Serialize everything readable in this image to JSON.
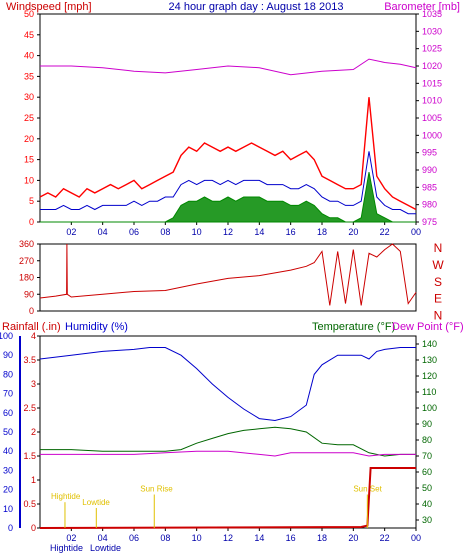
{
  "colors": {
    "background": "#ffffff",
    "frame": "#000000",
    "wind": "#ff0000",
    "wind_avg": "#0000cc",
    "wind_low": "#008800",
    "barometer": "#cc00cc",
    "direction": "#cc0000",
    "rain": "#cc0000",
    "humidity": "#0000cc",
    "temperature": "#006600",
    "dewpoint": "#cc00cc",
    "sun": "#e0c000"
  },
  "chart_data": [
    {
      "type": "line",
      "title": "24 hour graph day : August 18 2013",
      "ylabel_left": "Windspeed [mph]",
      "ylabel_right": "Barometer [mb]",
      "x_ticks": [
        "02",
        "04",
        "06",
        "08",
        "10",
        "12",
        "14",
        "16",
        "18",
        "20",
        "22",
        "00"
      ],
      "y_left_ticks": [
        "0",
        "5",
        "10",
        "15",
        "20",
        "25",
        "30",
        "35",
        "40",
        "45",
        "50"
      ],
      "y_right_ticks": [
        "975",
        "980",
        "985",
        "990",
        "995",
        "1000",
        "1005",
        "1010",
        "1015",
        "1020",
        "1025",
        "1030",
        "1035"
      ],
      "xlim": [
        0,
        24
      ],
      "ylim_left": [
        0,
        50
      ],
      "ylim_right": [
        975,
        1035
      ],
      "grid": false,
      "series": [
        {
          "key": "gust",
          "axis": "left",
          "x": [
            0,
            0.5,
            1,
            1.5,
            2,
            2.5,
            3,
            3.5,
            4,
            4.5,
            5,
            5.5,
            6,
            6.5,
            7,
            7.5,
            8,
            8.5,
            9,
            9.5,
            10,
            10.5,
            11,
            11.5,
            12,
            12.5,
            13,
            13.5,
            14,
            14.5,
            15,
            15.5,
            16,
            16.5,
            17,
            17.5,
            18,
            18.5,
            19,
            19.5,
            20,
            20.5,
            21,
            21.5,
            22,
            22.5,
            23,
            23.5,
            24
          ],
          "values": [
            6,
            7,
            6,
            8,
            7,
            6,
            8,
            7,
            8,
            9,
            8,
            9,
            10,
            8,
            9,
            10,
            11,
            12,
            16,
            18,
            17,
            19,
            18,
            17,
            18,
            17,
            18,
            19,
            18,
            17,
            16,
            17,
            15,
            16,
            17,
            15,
            11,
            10,
            9,
            8,
            8,
            9,
            30,
            11,
            8,
            6,
            5,
            4,
            3
          ]
        },
        {
          "key": "avg",
          "axis": "left",
          "x": [
            0,
            0.5,
            1,
            1.5,
            2,
            2.5,
            3,
            3.5,
            4,
            4.5,
            5,
            5.5,
            6,
            6.5,
            7,
            7.5,
            8,
            8.5,
            9,
            9.5,
            10,
            10.5,
            11,
            11.5,
            12,
            12.5,
            13,
            13.5,
            14,
            14.5,
            15,
            15.5,
            16,
            16.5,
            17,
            17.5,
            18,
            18.5,
            19,
            19.5,
            20,
            20.5,
            21,
            21.5,
            22,
            22.5,
            23,
            23.5,
            24
          ],
          "values": [
            3,
            3,
            3,
            4,
            3,
            3,
            4,
            3,
            4,
            4,
            4,
            4,
            5,
            4,
            5,
            5,
            6,
            6,
            9,
            10,
            9,
            10,
            10,
            9,
            10,
            9,
            10,
            10,
            10,
            9,
            9,
            9,
            8,
            8,
            9,
            8,
            6,
            5,
            5,
            4,
            4,
            5,
            17,
            6,
            4,
            3,
            3,
            2,
            2
          ]
        },
        {
          "key": "low",
          "axis": "left",
          "x": [
            0,
            0.5,
            1,
            1.5,
            2,
            2.5,
            3,
            3.5,
            4,
            4.5,
            5,
            5.5,
            6,
            6.5,
            7,
            7.5,
            8,
            8.5,
            9,
            9.5,
            10,
            10.5,
            11,
            11.5,
            12,
            12.5,
            13,
            13.5,
            14,
            14.5,
            15,
            15.5,
            16,
            16.5,
            17,
            17.5,
            18,
            18.5,
            19,
            19.5,
            20,
            20.5,
            21,
            21.5,
            22,
            22.5,
            23,
            23.5,
            24
          ],
          "values": [
            0,
            0,
            0,
            0,
            0,
            0,
            0,
            0,
            0,
            0,
            0,
            0,
            0,
            0,
            0,
            0,
            0,
            1,
            4,
            5,
            5,
            6,
            5,
            5,
            6,
            5,
            6,
            6,
            6,
            5,
            5,
            5,
            4,
            4,
            5,
            4,
            2,
            1,
            1,
            0,
            0,
            1,
            12,
            2,
            1,
            0,
            0,
            0,
            0
          ]
        },
        {
          "key": "baro",
          "axis": "right",
          "x": [
            0,
            2,
            4,
            6,
            8,
            10,
            12,
            14,
            16,
            18,
            20,
            21,
            22,
            23,
            24
          ],
          "values": [
            1020,
            1020,
            1019.5,
            1018.5,
            1018,
            1019,
            1020,
            1019.5,
            1017.5,
            1018.5,
            1019,
            1022,
            1021,
            1020.5,
            1019.5
          ]
        }
      ]
    },
    {
      "type": "line",
      "ylabel_right": [
        "N",
        "W",
        "S",
        "E",
        "N"
      ],
      "y_left_ticks": [
        "0",
        "90",
        "180",
        "270",
        "360"
      ],
      "ylim": [
        0,
        360
      ],
      "series": [
        {
          "key": "direction",
          "x": [
            0,
            1,
            1.7,
            1.72,
            1.74,
            2,
            4,
            6,
            8,
            10,
            12,
            14,
            16,
            17,
            17.5,
            18,
            18.5,
            19,
            19.5,
            20,
            20.5,
            21,
            21.5,
            22,
            22.5,
            23,
            23.5,
            24
          ],
          "values": [
            70,
            80,
            90,
            360,
            90,
            75,
            90,
            105,
            110,
            145,
            175,
            190,
            220,
            240,
            260,
            320,
            30,
            320,
            40,
            330,
            30,
            310,
            290,
            330,
            360,
            320,
            40,
            100
          ]
        }
      ]
    },
    {
      "type": "line",
      "ylabel_left_1": "Rainfall (.in)",
      "ylabel_left_2": "Humidity (%)",
      "ylabel_right_1": "Temperature (°F)",
      "ylabel_right_2": "Dew Point (°F)",
      "y_hum_ticks": [
        "0",
        "10",
        "20",
        "30",
        "40",
        "50",
        "60",
        "70",
        "80",
        "90",
        "100"
      ],
      "y_rain_ticks": [
        "0",
        "0.5",
        "1",
        "1.5",
        "2",
        "2.5",
        "3",
        "3.5",
        "4"
      ],
      "y_temp_ticks": [
        "30",
        "40",
        "50",
        "60",
        "70",
        "80",
        "90",
        "100",
        "110",
        "120",
        "130",
        "140"
      ],
      "ylim_hum": [
        0,
        100
      ],
      "ylim_rain": [
        0,
        4
      ],
      "ylim_temp": [
        25,
        145
      ],
      "annotations": [
        {
          "label": "Hightide",
          "x": 0.7,
          "y_frac": 0.85
        },
        {
          "label": "Lowtide",
          "x": 2.7,
          "y_frac": 0.88
        },
        {
          "label": "Sun Rise",
          "x": 6.4,
          "y_frac": 0.81
        },
        {
          "label": "Sun Set",
          "x": 20.0,
          "y_frac": 0.81
        }
      ],
      "bottom_labels": [
        "Hightide",
        "Lowtide"
      ],
      "series": [
        {
          "key": "humidity",
          "axis": "hum",
          "x": [
            0,
            1,
            2,
            4,
            6,
            7,
            8,
            9,
            10,
            11,
            12,
            13,
            14,
            15,
            16,
            17,
            17.5,
            18,
            19,
            20,
            20.5,
            21,
            21.5,
            22,
            23,
            24
          ],
          "values": [
            88,
            89,
            90,
            92,
            93,
            94,
            94,
            90,
            83,
            75,
            68,
            62,
            57,
            56,
            58,
            64,
            80,
            85,
            90,
            90,
            90,
            88,
            92,
            93,
            94,
            94
          ]
        },
        {
          "key": "temperature",
          "axis": "temp",
          "x": [
            0,
            2,
            4,
            6,
            8,
            9,
            10,
            11,
            12,
            13,
            14,
            15,
            16,
            17,
            18,
            19,
            20,
            21,
            22,
            23,
            24
          ],
          "values": [
            74,
            74,
            73,
            73,
            73,
            74,
            78,
            81,
            84,
            86,
            87,
            88,
            87,
            85,
            78,
            77,
            77,
            72,
            70,
            71,
            71
          ]
        },
        {
          "key": "dewpoint",
          "axis": "temp",
          "x": [
            0,
            2,
            4,
            6,
            8,
            10,
            12,
            14,
            15,
            16,
            18,
            20,
            21,
            22,
            24
          ],
          "values": [
            71,
            71,
            71,
            71,
            72,
            73,
            73,
            71,
            70,
            72,
            72,
            72,
            70,
            71,
            71
          ]
        },
        {
          "key": "rain",
          "axis": "rain",
          "x": [
            0,
            20.5,
            20.9,
            21.1,
            24
          ],
          "values": [
            0,
            0.02,
            0.05,
            1.25,
            1.25
          ]
        }
      ]
    }
  ]
}
